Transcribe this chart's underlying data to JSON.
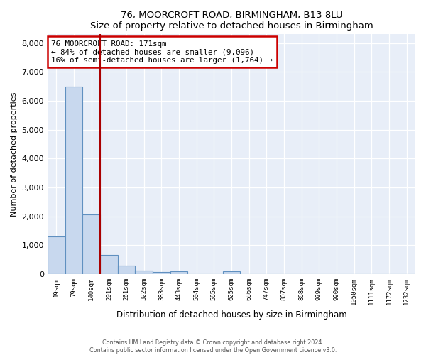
{
  "title1": "76, MOORCROFT ROAD, BIRMINGHAM, B13 8LU",
  "title2": "Size of property relative to detached houses in Birmingham",
  "xlabel": "Distribution of detached houses by size in Birmingham",
  "ylabel": "Number of detached properties",
  "bar_labels": [
    "19sqm",
    "79sqm",
    "140sqm",
    "201sqm",
    "261sqm",
    "322sqm",
    "383sqm",
    "443sqm",
    "504sqm",
    "565sqm",
    "625sqm",
    "686sqm",
    "747sqm",
    "807sqm",
    "868sqm",
    "929sqm",
    "990sqm",
    "1050sqm",
    "1111sqm",
    "1172sqm",
    "1232sqm"
  ],
  "bar_values": [
    1300,
    6500,
    2080,
    680,
    290,
    130,
    75,
    110,
    0,
    0,
    110,
    0,
    0,
    0,
    0,
    0,
    0,
    0,
    0,
    0,
    0
  ],
  "bar_color": "#c8d8ee",
  "bar_edge_color": "#6090c0",
  "vline_color": "#aa0000",
  "annotation_text": "76 MOORCROFT ROAD: 171sqm\n← 84% of detached houses are smaller (9,096)\n16% of semi-detached houses are larger (1,764) →",
  "annotation_box_color": "#ffffff",
  "annotation_box_edge_color": "#cc0000",
  "ylim": [
    0,
    8300
  ],
  "yticks": [
    0,
    1000,
    2000,
    3000,
    4000,
    5000,
    6000,
    7000,
    8000
  ],
  "background_color": "#e8eef8",
  "footer1": "Contains HM Land Registry data © Crown copyright and database right 2024.",
  "footer2": "Contains public sector information licensed under the Open Government Licence v3.0."
}
